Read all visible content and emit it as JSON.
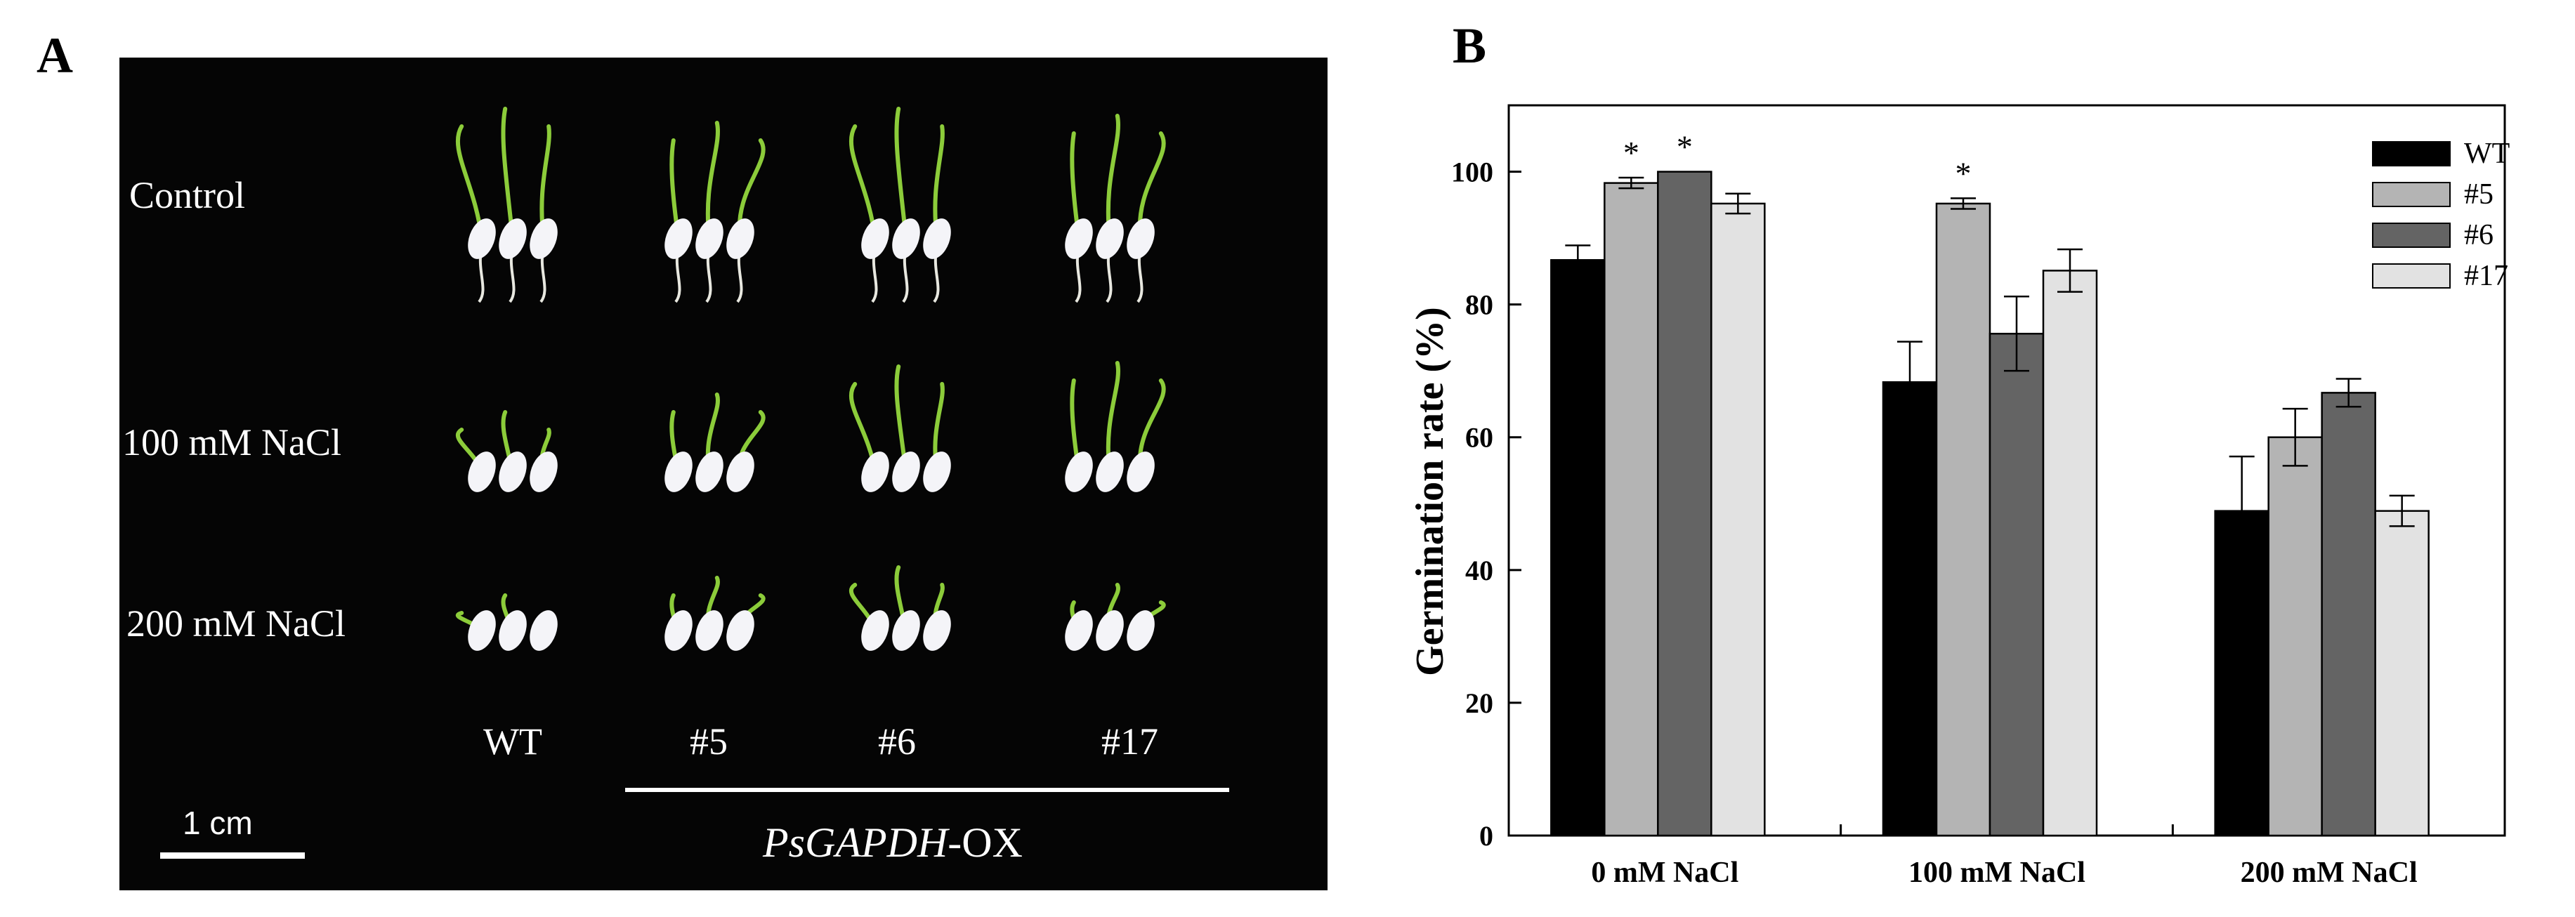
{
  "panel_a": {
    "letter": "A",
    "rows": [
      "Control",
      "100 mM NaCl",
      "200 mM NaCl"
    ],
    "columns": [
      "WT",
      "#5",
      "#6",
      "#17"
    ],
    "transgene_label_italic": "PsGAPDH",
    "transgene_label_suffix": "-OX",
    "scale_bar_label": "1 cm"
  },
  "panel_b": {
    "letter": "B"
  },
  "chart_data": {
    "type": "bar",
    "ylabel": "Germination rate (%)",
    "xlabel": "",
    "ylim": [
      0,
      110
    ],
    "yticks": [
      0,
      20,
      40,
      60,
      80,
      100
    ],
    "categories": [
      "0 mM NaCl",
      "100 mM NaCl",
      "200 mM NaCl"
    ],
    "series": [
      {
        "name": "WT",
        "color": "#000000",
        "values": [
          86.7,
          68.3,
          48.9
        ],
        "errors": [
          2.2,
          6.1,
          8.2
        ],
        "significant": [
          false,
          false,
          false
        ]
      },
      {
        "name": "#5",
        "color": "#b4b4b4",
        "values": [
          98.3,
          95.2,
          60.0
        ],
        "errors": [
          0.8,
          0.8,
          4.3
        ],
        "significant": [
          true,
          true,
          false
        ]
      },
      {
        "name": "#6",
        "color": "#646464",
        "values": [
          100.0,
          75.6,
          66.7
        ],
        "errors": [
          0.0,
          5.6,
          2.1
        ],
        "significant": [
          true,
          false,
          false
        ]
      },
      {
        "name": "#17",
        "color": "#e2e2e2",
        "values": [
          95.2,
          85.1,
          48.9
        ],
        "errors": [
          1.5,
          3.2,
          2.3
        ],
        "significant": [
          false,
          false,
          false
        ]
      }
    ],
    "significance_marker": "*",
    "legend_position": "top-right",
    "grid": false
  }
}
